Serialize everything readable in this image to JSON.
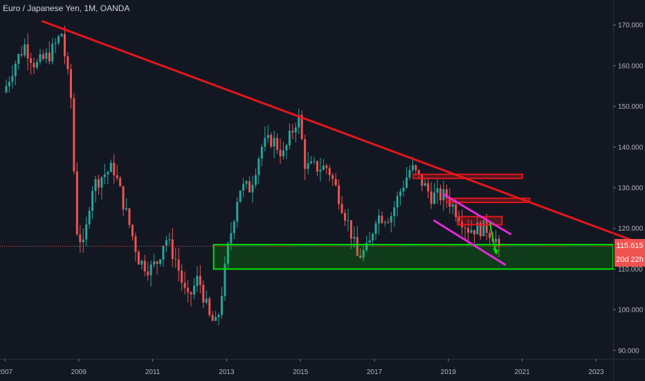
{
  "header": {
    "symbol": "Euro / Japanese Yen",
    "timeframe": "1M",
    "broker": "OANDA",
    "separator": ", "
  },
  "colors": {
    "background": "#131722",
    "up_candle": "#26a69a",
    "down_candle": "#ef5350",
    "trendline": "#e3161b",
    "support_zone": "#00e600",
    "channel": "#e32ad6",
    "resistance_boxes": "#e3161b",
    "price_badge": "#ef5350",
    "countdown_badge": "#ef5350"
  },
  "badges": {
    "last_price": "115.615",
    "countdown": "20d 22h"
  },
  "chart_data": {
    "type": "candlestick",
    "title": "Euro / Japanese Yen, 1M, OANDA",
    "xlabel": "",
    "ylabel": "",
    "x_range": [
      2007.0,
      2024.0
    ],
    "ylim": [
      87,
      176
    ],
    "y_ticks": [
      "90.000",
      "100.000",
      "110.000",
      "120.000",
      "130.000",
      "140.000",
      "150.000",
      "160.000",
      "170.000"
    ],
    "x_ticks": [
      "2007",
      "2009",
      "2011",
      "2013",
      "2015",
      "2017",
      "2019",
      "2021",
      "2023"
    ],
    "grid": false,
    "last_price": 115.615,
    "monthly_close_anchors": [
      [
        2007.0,
        155
      ],
      [
        2007.2,
        160
      ],
      [
        2007.5,
        165
      ],
      [
        2007.8,
        160
      ],
      [
        2008.2,
        163
      ],
      [
        2008.5,
        168
      ],
      [
        2008.75,
        152
      ],
      [
        2008.9,
        120
      ],
      [
        2009.1,
        115
      ],
      [
        2009.3,
        130
      ],
      [
        2009.6,
        133
      ],
      [
        2009.9,
        135
      ],
      [
        2010.3,
        122
      ],
      [
        2010.6,
        112
      ],
      [
        2010.9,
        110
      ],
      [
        2011.1,
        112
      ],
      [
        2011.3,
        118
      ],
      [
        2011.6,
        112
      ],
      [
        2011.9,
        102
      ],
      [
        2012.2,
        108
      ],
      [
        2012.5,
        98
      ],
      [
        2012.7,
        96
      ],
      [
        2013.0,
        115
      ],
      [
        2013.3,
        130
      ],
      [
        2013.6,
        130
      ],
      [
        2013.9,
        140
      ],
      [
        2014.2,
        142
      ],
      [
        2014.5,
        138
      ],
      [
        2014.9,
        148
      ],
      [
        2015.1,
        135
      ],
      [
        2015.4,
        135
      ],
      [
        2015.7,
        135
      ],
      [
        2016.0,
        128
      ],
      [
        2016.3,
        120
      ],
      [
        2016.5,
        113
      ],
      [
        2016.8,
        115
      ],
      [
        2017.0,
        123
      ],
      [
        2017.4,
        123
      ],
      [
        2017.7,
        130
      ],
      [
        2017.95,
        135
      ],
      [
        2018.2,
        132
      ],
      [
        2018.5,
        128
      ],
      [
        2018.9,
        128
      ],
      [
        2019.2,
        124
      ],
      [
        2019.5,
        120
      ],
      [
        2019.8,
        120
      ],
      [
        2020.0,
        120
      ],
      [
        2020.2,
        118
      ],
      [
        2020.35,
        115.6
      ]
    ],
    "drawings": {
      "trendline": {
        "from": [
          2008.0,
          171
        ],
        "to": [
          2024.0,
          117
        ]
      },
      "support_zone": {
        "x_from": 2012.65,
        "x_to": 2024.0,
        "y_low": 110,
        "y_high": 116
      },
      "channel_upper": {
        "from": [
          2018.85,
          128.5
        ],
        "to": [
          2020.7,
          118.5
        ]
      },
      "channel_lower": {
        "from": [
          2018.6,
          122
        ],
        "to": [
          2020.55,
          111
        ]
      },
      "resistance_boxes": [
        {
          "x_from": 2018.05,
          "x_to": 2021.0,
          "y_low": 132.3,
          "y_high": 133.3
        },
        {
          "x_from": 2018.95,
          "x_to": 2021.2,
          "y_low": 126.4,
          "y_high": 127.4
        },
        {
          "x_from": 2019.25,
          "x_to": 2020.45,
          "y_low": 120.9,
          "y_high": 122.9
        }
      ]
    }
  }
}
